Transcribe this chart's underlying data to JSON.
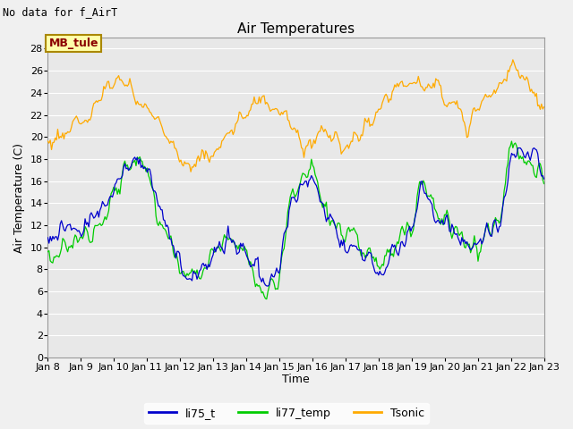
{
  "title": "Air Temperatures",
  "top_left_text": "No data for f_AirT",
  "legend_box_label": "MB_tule",
  "ylabel": "Air Temperature (C)",
  "xlabel": "Time",
  "ylim": [
    0,
    29
  ],
  "yticks": [
    0,
    2,
    4,
    6,
    8,
    10,
    12,
    14,
    16,
    18,
    20,
    22,
    24,
    26,
    28
  ],
  "x_tick_labels": [
    "Jan 8",
    "Jan 9",
    "Jan 10",
    "Jan 11",
    "Jan 12",
    "Jan 13",
    "Jan 14",
    "Jan 15",
    "Jan 16",
    "Jan 17",
    "Jan 18",
    "Jan 19",
    "Jan 20",
    "Jan 21",
    "Jan 22",
    "Jan 23"
  ],
  "line_colors": {
    "li75_t": "#0000cc",
    "li77_temp": "#00cc00",
    "Tsonic": "#ffaa00"
  },
  "fig_facecolor": "#f0f0f0",
  "plot_bg_color": "#e8e8e8",
  "title_fontsize": 11,
  "tick_fontsize": 8,
  "label_fontsize": 9,
  "legend_fontsize": 9
}
